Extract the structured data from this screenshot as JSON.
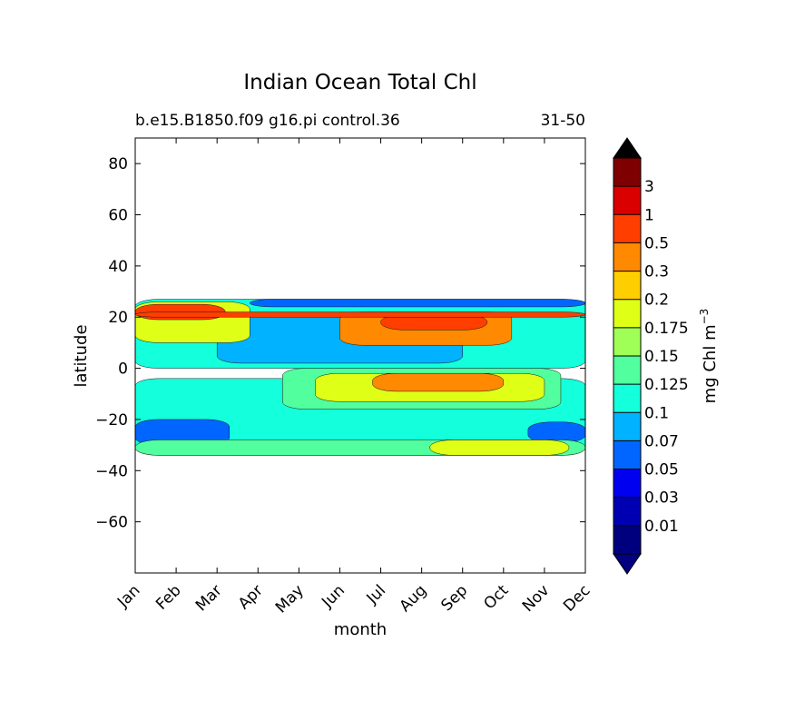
{
  "chart_data": {
    "type": "heatmap",
    "title": "Indian Ocean Total Chl",
    "subtitle_left": "b.e15.B1850.f09 g16.pi control.36",
    "subtitle_right": "31-50",
    "xlabel": "month",
    "ylabel": "latitude",
    "x_categories": [
      "Jan",
      "Feb",
      "Mar",
      "Apr",
      "May",
      "Jun",
      "Jul",
      "Aug",
      "Sep",
      "Oct",
      "Nov",
      "Dec"
    ],
    "ylim": [
      -80,
      90
    ],
    "y_ticks": [
      80,
      60,
      40,
      20,
      0,
      -20,
      -40,
      -60
    ],
    "y_tick_labels": [
      "80",
      "60",
      "40",
      "20",
      "0",
      "−20",
      "−40",
      "−60"
    ],
    "data_lat_range": [
      -34,
      27
    ],
    "colorbar": {
      "label": "mg Chl m",
      "label_exponent": "−3",
      "levels": [
        0.01,
        0.03,
        0.05,
        0.07,
        0.1,
        0.125,
        0.15,
        0.175,
        0.2,
        0.3,
        0.5,
        1,
        3
      ],
      "tick_labels": [
        "0.01",
        "0.03",
        "0.05",
        "0.07",
        "0.1",
        "0.125",
        "0.15",
        "0.175",
        "0.2",
        "0.3",
        "0.5",
        "1",
        "3"
      ],
      "colors": [
        "#00007f",
        "#0000b2",
        "#0000f1",
        "#0066ff",
        "#00b2ff",
        "#14ffdb",
        "#51ff9e",
        "#a0ff56",
        "#dfff16",
        "#ffce00",
        "#ff8900",
        "#ff3e00",
        "#db0000",
        "#7f0000"
      ],
      "under_color": "#000080",
      "over_color": "#000000"
    },
    "regions": [
      {
        "name": "south-background",
        "value": 0.1,
        "lat": [
          -34,
          -4
        ],
        "month": [
          0,
          11
        ]
      },
      {
        "name": "south-low-west",
        "value": 0.05,
        "lat": [
          -30,
          -20
        ],
        "month": [
          0,
          2.3
        ]
      },
      {
        "name": "south-low-east",
        "value": 0.05,
        "lat": [
          -29,
          -21
        ],
        "month": [
          9.6,
          11
        ]
      },
      {
        "name": "south-subtropical-edge",
        "value": 0.125,
        "lat": [
          -34,
          -28
        ],
        "month": [
          0,
          11
        ]
      },
      {
        "name": "south-gyre-bloom",
        "value": 0.175,
        "lat": [
          -34,
          -28
        ],
        "month": [
          7.2,
          10.6
        ]
      },
      {
        "name": "equatorial-bloom-outer",
        "value": 0.125,
        "lat": [
          -16,
          0
        ],
        "month": [
          3.6,
          10.4
        ]
      },
      {
        "name": "equatorial-bloom",
        "value": 0.175,
        "lat": [
          -13,
          -2
        ],
        "month": [
          4.4,
          10
        ]
      },
      {
        "name": "equatorial-bloom-core",
        "value": 0.3,
        "lat": [
          -9,
          -2
        ],
        "month": [
          5.8,
          9
        ]
      },
      {
        "name": "arabian-sea-background",
        "value": 0.1,
        "lat": [
          0,
          27
        ],
        "month": [
          0,
          11
        ]
      },
      {
        "name": "arabian-sea-low",
        "value": 0.07,
        "lat": [
          2,
          20
        ],
        "month": [
          2,
          8
        ]
      },
      {
        "name": "arabian-sea-winter-bloom",
        "value": 0.175,
        "lat": [
          10,
          26
        ],
        "month": [
          0,
          2.8
        ]
      },
      {
        "name": "arabian-sea-winter-core",
        "value": 0.5,
        "lat": [
          19,
          25
        ],
        "month": [
          0,
          2.2
        ]
      },
      {
        "name": "arabian-sea-monsoon-bloom",
        "value": 0.3,
        "lat": [
          9,
          22
        ],
        "month": [
          5,
          9.2
        ]
      },
      {
        "name": "arabian-sea-monsoon-core",
        "value": 0.5,
        "lat": [
          15,
          21
        ],
        "month": [
          6,
          8.6
        ]
      },
      {
        "name": "gulf-band",
        "value": 0.5,
        "lat": [
          20,
          22
        ],
        "month": [
          0,
          11
        ]
      },
      {
        "name": "northern-edge-low",
        "value": 0.05,
        "lat": [
          24,
          27
        ],
        "month": [
          2.8,
          11
        ]
      }
    ]
  }
}
